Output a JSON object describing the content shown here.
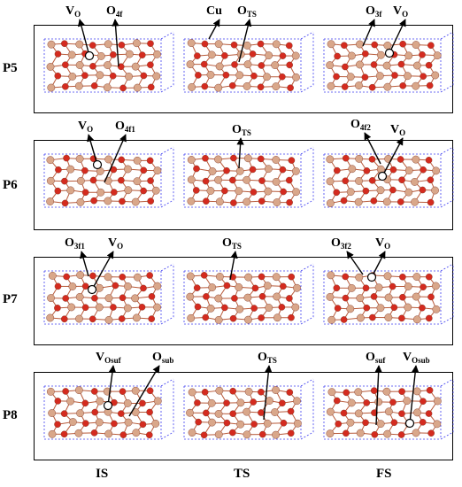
{
  "columns": [
    "IS",
    "TS",
    "FS"
  ],
  "colors": {
    "oxygen": "#d42b1f",
    "cerium": "#d9a78a",
    "copper": "#c9a24a",
    "cell_edge": "#3e3ef0",
    "bond": "#b85a3a"
  },
  "rows": [
    {
      "label": "P5",
      "annotations": [
        {
          "base": "V",
          "sub": "O",
          "marker": "vacancy-circle"
        },
        {
          "base": "O",
          "sub": "4f",
          "marker": "arrow"
        },
        {
          "base": "Cu",
          "sub": "",
          "marker": "arrow"
        },
        {
          "base": "O",
          "sub": "TS",
          "marker": "arrow"
        },
        {
          "base": "O",
          "sub": "3f",
          "marker": "arrow"
        },
        {
          "base": "V",
          "sub": "O",
          "marker": "vacancy-circle"
        }
      ]
    },
    {
      "label": "P6",
      "annotations": [
        {
          "base": "V",
          "sub": "O",
          "marker": "vacancy-circle"
        },
        {
          "base": "O",
          "sub": "4f1",
          "marker": "arrow"
        },
        {
          "base": "O",
          "sub": "TS",
          "marker": "arrow"
        },
        {
          "base": "O",
          "sub": "4f2",
          "marker": "arrow"
        },
        {
          "base": "V",
          "sub": "O",
          "marker": "vacancy-circle"
        }
      ]
    },
    {
      "label": "P7",
      "annotations": [
        {
          "base": "O",
          "sub": "3f1",
          "marker": "arrow"
        },
        {
          "base": "V",
          "sub": "O",
          "marker": "vacancy-circle"
        },
        {
          "base": "O",
          "sub": "TS",
          "marker": "arrow"
        },
        {
          "base": "O",
          "sub": "3f2",
          "marker": "arrow"
        },
        {
          "base": "V",
          "sub": "O",
          "marker": "vacancy-circle"
        }
      ]
    },
    {
      "label": "P8",
      "annotations": [
        {
          "base": "V",
          "sub": "Osuf",
          "marker": "vacancy-circle"
        },
        {
          "base": "O",
          "sub": "sub",
          "marker": "arrow"
        },
        {
          "base": "O",
          "sub": "TS",
          "marker": "arrow"
        },
        {
          "base": "O",
          "sub": "suf",
          "marker": "arrow"
        },
        {
          "base": "V",
          "sub": "Osub",
          "marker": "vacancy-circle"
        }
      ]
    }
  ]
}
